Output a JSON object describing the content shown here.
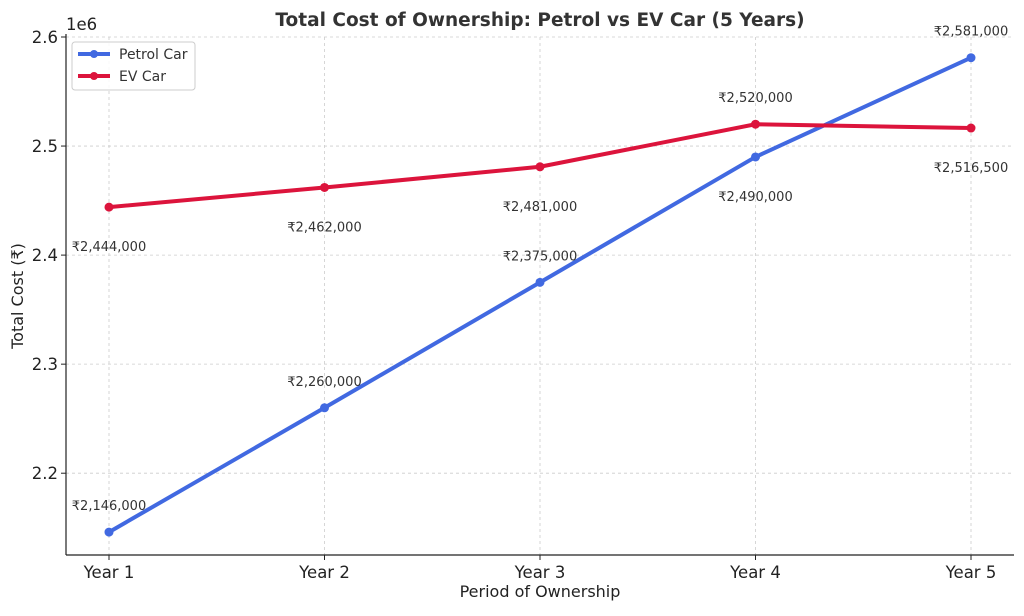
{
  "chart_data": {
    "type": "line",
    "title": "Total Cost of Ownership: Petrol vs EV Car (5 Years)",
    "xlabel": "Period of Ownership",
    "ylabel": "Total Cost (₹)",
    "y_offset_label": "1e6",
    "categories": [
      "Year 1",
      "Year 2",
      "Year 3",
      "Year 4",
      "Year 5"
    ],
    "ylim": [
      2125000,
      2600000
    ],
    "yticks": [
      2200000,
      2300000,
      2400000,
      2500000,
      2600000
    ],
    "ytick_labels": [
      "2.2",
      "2.3",
      "2.4",
      "2.5",
      "2.6"
    ],
    "grid": true,
    "legend_position": "top-left",
    "series": [
      {
        "name": "Petrol Car",
        "color": "#4169e1",
        "values": [
          2146000,
          2260000,
          2375000,
          2490000,
          2581000
        ],
        "labels": [
          "₹2,146,000",
          "₹2,260,000",
          "₹2,375,000",
          "₹2,490,000",
          "₹2,581,000"
        ]
      },
      {
        "name": "EV Car",
        "color": "#dc143c",
        "values": [
          2444000,
          2462000,
          2481000,
          2520000,
          2516500
        ],
        "labels": [
          "₹2,444,000",
          "₹2,462,000",
          "₹2,481,000",
          "₹2,520,000",
          "₹2,516,500"
        ]
      }
    ]
  }
}
